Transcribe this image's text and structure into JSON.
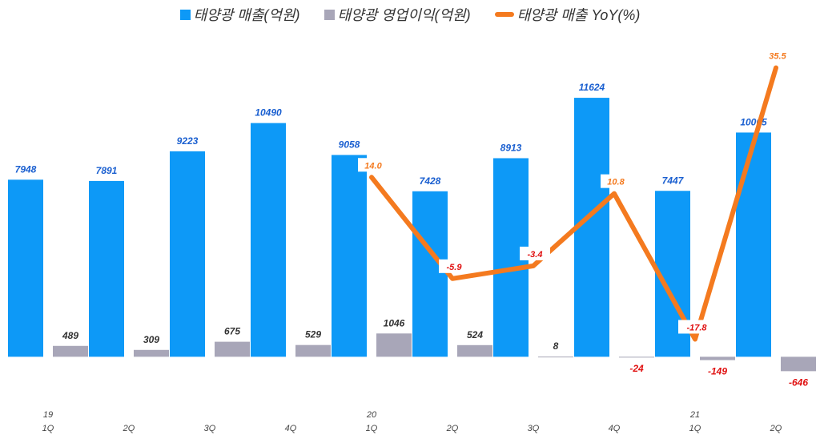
{
  "chart_data": {
    "type": "bar+line",
    "categories": [
      {
        "year": "19",
        "quarter": "1Q"
      },
      {
        "year": "",
        "quarter": "2Q"
      },
      {
        "year": "",
        "quarter": "3Q"
      },
      {
        "year": "",
        "quarter": "4Q"
      },
      {
        "year": "20",
        "quarter": "1Q"
      },
      {
        "year": "",
        "quarter": "2Q"
      },
      {
        "year": "",
        "quarter": "3Q"
      },
      {
        "year": "",
        "quarter": "4Q"
      },
      {
        "year": "21",
        "quarter": "1Q"
      },
      {
        "year": "",
        "quarter": "2Q"
      }
    ],
    "series": [
      {
        "name": "태양광 매출(억원)",
        "type": "bar",
        "color": "#0d99f7",
        "label_color": "#1a5fd0",
        "values": [
          7948,
          7891,
          9223,
          10490,
          9058,
          7428,
          8913,
          11624,
          7447,
          10065
        ]
      },
      {
        "name": "태양광 영업이익(억원)",
        "type": "bar",
        "color": "#a8a6b8",
        "label_color": "#333333",
        "negative_label_color": "#e01010",
        "values": [
          489,
          309,
          675,
          529,
          1046,
          524,
          8,
          -24,
          -149,
          -646
        ]
      },
      {
        "name": "태양광 매출 YoY(%)",
        "type": "line",
        "axis": "secondary",
        "color": "#f47a1f",
        "label_color": "#f47a1f",
        "negative_label_color": "#e01010",
        "values": [
          null,
          null,
          null,
          null,
          14.0,
          -5.9,
          -3.4,
          10.8,
          -17.8,
          35.5
        ]
      }
    ],
    "ylim": [
      -2000,
      14000
    ],
    "y2lim": [
      -30,
      40
    ],
    "axes_visible": false,
    "grid": false,
    "legend": "top"
  }
}
